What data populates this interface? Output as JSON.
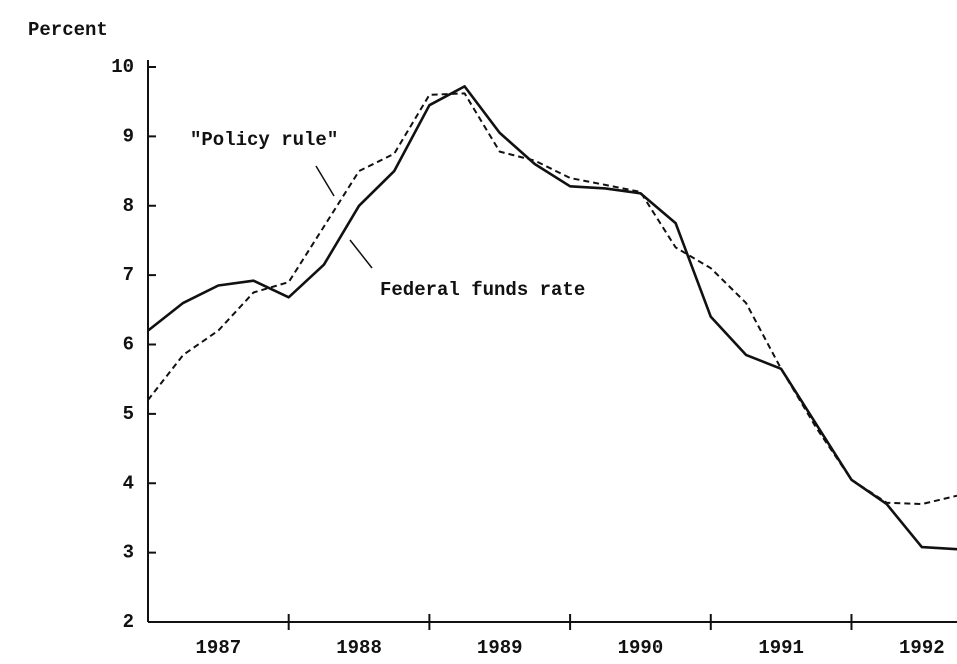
{
  "chart_data": {
    "type": "line",
    "y_axis_label": "Percent",
    "annotations": [
      "\"Policy rule\"",
      "Federal funds rate"
    ],
    "x": [
      1987,
      1987.25,
      1987.5,
      1987.75,
      1988,
      1988.25,
      1988.5,
      1988.75,
      1989,
      1989.25,
      1989.5,
      1989.75,
      1990,
      1990.25,
      1990.5,
      1990.75,
      1991,
      1991.25,
      1991.5,
      1991.75,
      1992,
      1992.25,
      1992.5,
      1992.75
    ],
    "series": [
      {
        "name": "Federal funds rate",
        "color": "#111111",
        "dash": "solid",
        "values": [
          6.2,
          6.6,
          6.85,
          6.92,
          6.68,
          7.15,
          8.0,
          8.5,
          9.45,
          9.72,
          9.05,
          8.6,
          8.28,
          8.25,
          8.18,
          7.75,
          6.4,
          5.85,
          5.65,
          4.85,
          4.05,
          3.7,
          3.08,
          3.05
        ]
      },
      {
        "name": "\"Policy rule\"",
        "color": "#111111",
        "dash": "dashed",
        "values": [
          5.2,
          5.85,
          6.2,
          6.75,
          6.9,
          7.7,
          8.5,
          8.75,
          9.6,
          9.62,
          8.78,
          8.65,
          8.4,
          8.3,
          8.2,
          7.4,
          7.1,
          6.6,
          5.65,
          4.8,
          4.05,
          3.72,
          3.7,
          3.82
        ]
      }
    ],
    "xlim": [
      1987,
      1992.75
    ],
    "xticks": [
      1988,
      1989,
      1990,
      1991,
      1992
    ],
    "year_labels": [
      {
        "value": 1987.5,
        "label": "1987"
      },
      {
        "value": 1988.5,
        "label": "1988"
      },
      {
        "value": 1989.5,
        "label": "1989"
      },
      {
        "value": 1990.5,
        "label": "1990"
      },
      {
        "value": 1991.5,
        "label": "1991"
      },
      {
        "value": 1992.5,
        "label": "1992"
      }
    ],
    "ylim": [
      2,
      10
    ],
    "yticks": [
      2,
      3,
      4,
      5,
      6,
      7,
      8,
      9,
      10
    ],
    "grid": false
  }
}
